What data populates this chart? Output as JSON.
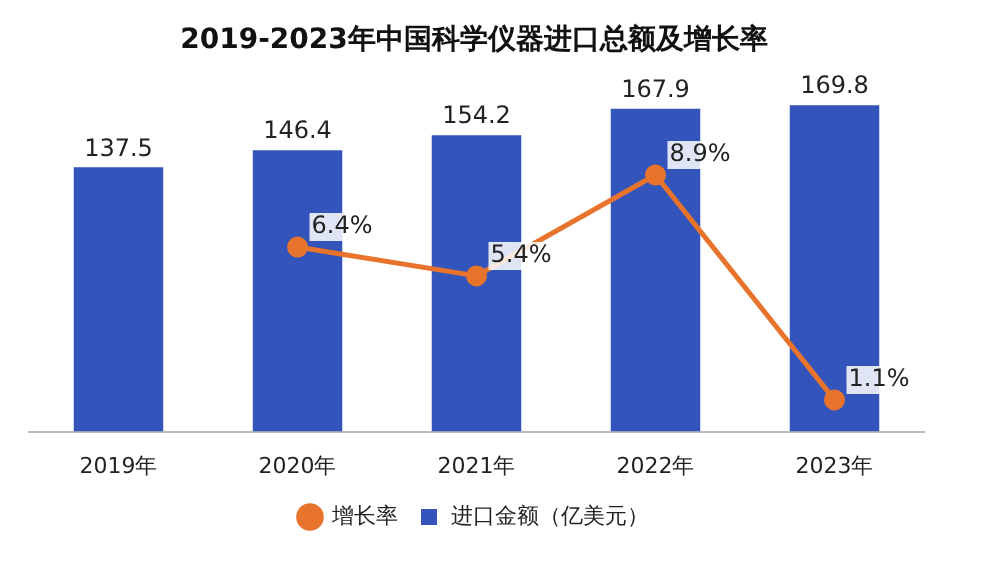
{
  "chart_data": {
    "type": "bar",
    "title": "2019-2023年中国科学仪器进口总额及增长率",
    "categories": [
      "2019年",
      "2020年",
      "2021年",
      "2022年",
      "2023年"
    ],
    "series": [
      {
        "name": "进口金额（亿美元）",
        "color": "#3355bb",
        "values": [
          137.5,
          146.4,
          154.2,
          167.9,
          169.8
        ],
        "value_labels": [
          "137.5",
          "146.4",
          "154.2",
          "167.9",
          "169.8"
        ]
      },
      {
        "name": "增长率",
        "type": "line",
        "axis": "y2",
        "color": "#e8732c",
        "values": [
          null,
          6.4,
          5.4,
          8.9,
          1.1
        ],
        "value_labels": [
          null,
          "6.4%",
          "5.4%",
          "8.9%",
          "1.1%"
        ]
      }
    ],
    "tick_labels": "x",
    "grid": false,
    "legend": "bottom",
    "marker": "circle",
    "line_style": "solid"
  }
}
